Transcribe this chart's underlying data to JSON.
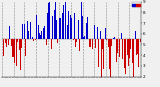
{
  "title": "",
  "ylim": [
    20,
    90
  ],
  "yticks": [
    20,
    30,
    40,
    50,
    60,
    70,
    80,
    90
  ],
  "ytick_labels": [
    "2",
    "3",
    "4",
    "5",
    "6",
    "7",
    "8",
    "9"
  ],
  "background_color": "#f0f0f0",
  "bar_color_above": "#0000cc",
  "bar_color_below": "#cc0000",
  "legend_labels": [
    "",
    ""
  ],
  "legend_colors": [
    "#0000cc",
    "#cc0000"
  ],
  "baseline": 55,
  "n_bars": 365,
  "seed": 42,
  "grid_color": "#888888",
  "figsize": [
    1.6,
    0.87
  ],
  "dpi": 100
}
